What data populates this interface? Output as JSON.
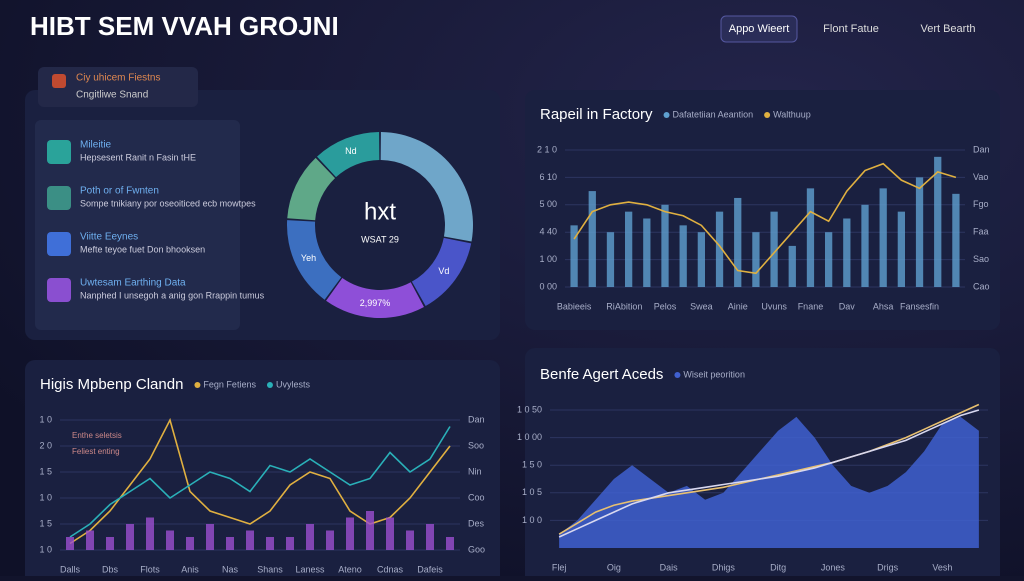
{
  "header": {
    "title": "HIBT SEM VVAH GROJNI",
    "nav": [
      "Appo Wieert",
      "Flont Fatue",
      "Vert Bearth"
    ]
  },
  "badge": {
    "title": "Ciy uhicem Fiestns",
    "subtitle": "Cngitliwe Snand"
  },
  "list": [
    {
      "title": "Mileitie",
      "text": "Hepsesent Ranit n Fasin tHE",
      "color": "#2aa39a"
    },
    {
      "title": "Poth or of Fwnten",
      "text": "Sompe tnikiany por oseoiticed ecb mowtpes",
      "color": "#3b8f85"
    },
    {
      "title": "Viitte Eeynes",
      "text": "Mefte teyoe fuet Don bhooksen",
      "color": "#3f6fd8"
    },
    {
      "title": "Uwtesam Earthing Data",
      "text": "Nanphed I unsegoh a anig gon Rrappin tumus",
      "color": "#8a4fd0"
    }
  ],
  "donut": {
    "center": "hxt",
    "label": "WSAT 29",
    "segments": [
      {
        "value": 28,
        "color": "#6fa6c9",
        "label": null
      },
      {
        "value": 14,
        "color": "#4a55c9",
        "label": "Vd"
      },
      {
        "value": 18,
        "color": "#8e4fd8",
        "label": "2,997%"
      },
      {
        "value": 16,
        "color": "#3c6fc0",
        "label": "Yeh"
      },
      {
        "value": 12,
        "color": "#5fa888",
        "label": null
      },
      {
        "value": 12,
        "color": "#2a9c9c",
        "label": "Nd"
      }
    ]
  },
  "charts": [
    {
      "type": "bar-line",
      "title": "Rapeil in Factory",
      "ylim": [
        0,
        100
      ],
      "yticks": [
        {
          "value": 0,
          "label": "0 00"
        },
        {
          "value": 20,
          "label": "1 00"
        },
        {
          "value": 40,
          "label": "4 40"
        },
        {
          "value": 60,
          "label": "5 00"
        },
        {
          "value": 80,
          "label": "6 10"
        },
        {
          "value": 100,
          "label": "2 1 0"
        }
      ],
      "y2ticks": [
        {
          "value": 0,
          "label": "Cao"
        },
        {
          "value": 20,
          "label": "Sao"
        },
        {
          "value": 40,
          "label": "Faa"
        },
        {
          "value": 60,
          "label": "Fgo"
        },
        {
          "value": 80,
          "label": "Vao"
        },
        {
          "value": 100,
          "label": "Dan"
        }
      ],
      "categories": [
        "Babieeis",
        null,
        "Ri",
        "Abition",
        null,
        "Pelos",
        null,
        "Swea",
        null,
        "Ainie",
        null,
        "Uvuns",
        null,
        "Fnane",
        null,
        "Dav",
        null,
        "Ahsa",
        null,
        "Fansesfin",
        null,
        null
      ],
      "series": [
        {
          "name": "Dafatetiian Aeantion",
          "type": "bar",
          "color": "#5fa0d0",
          "values": [
            45,
            70,
            40,
            55,
            50,
            60,
            45,
            40,
            55,
            65,
            40,
            55,
            30,
            72,
            40,
            50,
            60,
            72,
            55,
            80,
            95,
            68
          ]
        },
        {
          "name": "Walthuup",
          "type": "line",
          "color": "#e0b040",
          "values": [
            35,
            55,
            60,
            62,
            60,
            55,
            52,
            45,
            30,
            12,
            10,
            25,
            40,
            55,
            48,
            70,
            85,
            90,
            78,
            72,
            84,
            80
          ]
        }
      ]
    },
    {
      "type": "bar-line",
      "title": "Higis Mpbenp Clandn",
      "annotations": [
        "Enthe seletsis",
        "Feliest enting"
      ],
      "ylim": [
        0,
        100
      ],
      "yticks": [
        {
          "value": 0,
          "label": "1 0"
        },
        {
          "value": 20,
          "label": "1 5"
        },
        {
          "value": 40,
          "label": "1 0"
        },
        {
          "value": 60,
          "label": "1 5"
        },
        {
          "value": 80,
          "label": "2 0"
        },
        {
          "value": 100,
          "label": "1 0"
        }
      ],
      "y2ticks": [
        {
          "value": 0,
          "label": "Goo"
        },
        {
          "value": 20,
          "label": "Des"
        },
        {
          "value": 40,
          "label": "Coo"
        },
        {
          "value": 60,
          "label": "Nin"
        },
        {
          "value": 80,
          "label": "Soo"
        },
        {
          "value": 100,
          "label": "Dan"
        }
      ],
      "categories": [
        "Dalls",
        null,
        "Dbs",
        null,
        "Flots",
        null,
        "Anis",
        null,
        "Nas",
        null,
        "Shans",
        null,
        "Laness",
        null,
        "Ateno",
        null,
        "Cdnas",
        null,
        "Dafeis",
        null
      ],
      "series": [
        {
          "name": "Fegn Fetiens",
          "type": "line",
          "color": "#e0b040",
          "values": [
            5,
            15,
            30,
            50,
            70,
            100,
            45,
            30,
            25,
            20,
            30,
            50,
            60,
            55,
            30,
            20,
            25,
            40,
            60,
            80
          ]
        },
        {
          "name": "Uvylests",
          "type": "line",
          "color": "#2ab0b8",
          "values": [
            10,
            20,
            35,
            45,
            55,
            40,
            50,
            60,
            55,
            45,
            65,
            60,
            70,
            60,
            50,
            55,
            75,
            60,
            70,
            95
          ]
        },
        {
          "name": null,
          "type": "bar",
          "color": "#9b4fd0",
          "values": [
            10,
            15,
            10,
            20,
            25,
            15,
            10,
            20,
            10,
            15,
            10,
            10,
            20,
            15,
            25,
            30,
            25,
            15,
            20,
            10
          ]
        }
      ]
    },
    {
      "type": "area-line",
      "title": "Benfe Agert Aceds",
      "ylim": [
        0,
        100
      ],
      "yticks": [
        {
          "value": 20,
          "label": "1 0 0"
        },
        {
          "value": 40,
          "label": "1 0 5"
        },
        {
          "value": 60,
          "label": "1 5 0"
        },
        {
          "value": 80,
          "label": "1 0 00"
        },
        {
          "value": 100,
          "label": "1 0 50"
        }
      ],
      "categories": [
        "Flej",
        null,
        null,
        "Oig",
        null,
        null,
        "Dais",
        null,
        null,
        "Dhigs",
        null,
        null,
        "Ditg",
        null,
        null,
        "Jones",
        null,
        null,
        "Drigs",
        null,
        null,
        "Vesh",
        null,
        null
      ],
      "series": [
        {
          "name": "Wiseit peorition",
          "type": "area",
          "color": "#4060d0",
          "values": [
            10,
            20,
            35,
            50,
            60,
            50,
            40,
            45,
            35,
            40,
            55,
            70,
            85,
            95,
            80,
            60,
            45,
            40,
            45,
            55,
            70,
            90,
            95,
            85
          ]
        },
        {
          "name": null,
          "type": "line",
          "color": "#e8c070",
          "values": [
            10,
            18,
            26,
            31,
            34,
            36,
            38,
            40,
            42,
            44,
            47,
            50,
            53,
            56,
            59,
            62,
            66,
            70,
            75,
            80,
            86,
            92,
            98,
            104
          ]
        },
        {
          "name": null,
          "type": "line",
          "color": "#d8d8f0",
          "values": [
            8,
            14,
            20,
            26,
            32,
            36,
            40,
            42,
            44,
            46,
            48,
            50,
            52,
            55,
            58,
            62,
            66,
            70,
            74,
            78,
            84,
            90,
            96,
            100
          ]
        }
      ]
    }
  ]
}
